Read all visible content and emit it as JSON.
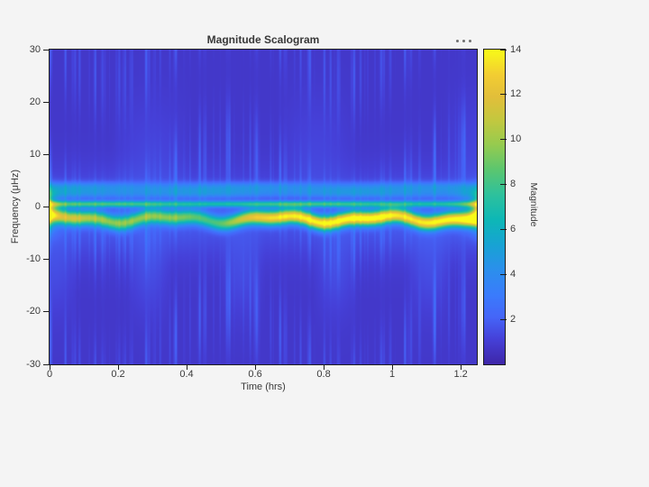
{
  "window": {
    "background": "#f4f4f4"
  },
  "title": "Magnitude Scalogram",
  "toolbar": {
    "more_options_icon": "ellipsis"
  },
  "axes": {
    "xlabel": "Time (hrs)",
    "ylabel": "Frequency (μHz)",
    "xtick_labels": [
      "0",
      "0.2",
      "0.4",
      "0.6",
      "0.8",
      "1",
      "1.2"
    ],
    "ytick_labels": [
      "30",
      "20",
      "10",
      "0",
      "-10",
      "-20",
      "-30"
    ]
  },
  "colorbar": {
    "label": "Magnitude",
    "tick_labels": [
      "2",
      "4",
      "6",
      "8",
      "10",
      "12",
      "14"
    ]
  },
  "chart_data": {
    "type": "heatmap",
    "subtype": "cwt-scalogram",
    "title": "Magnitude Scalogram",
    "xlabel": "Time (hrs)",
    "ylabel": "Frequency (μHz)",
    "xlim": [
      0,
      1.247
    ],
    "ylim": [
      -30,
      30
    ],
    "xticks": [
      0,
      0.2,
      0.4,
      0.6,
      0.8,
      1,
      1.2
    ],
    "yticks": [
      30,
      20,
      10,
      0,
      -10,
      -20,
      -30
    ],
    "grid": false,
    "colorbar": {
      "label": "Magnitude",
      "min": 0,
      "max": 14,
      "ticks": [
        2,
        4,
        6,
        8,
        10,
        12,
        14
      ],
      "position": "right"
    },
    "colormap": {
      "name": "parula",
      "stops": [
        [
          0.0,
          "#3e26a8"
        ],
        [
          0.08,
          "#4540d8"
        ],
        [
          0.15,
          "#4565f8"
        ],
        [
          0.22,
          "#3a7bfc"
        ],
        [
          0.3,
          "#2b8fec"
        ],
        [
          0.38,
          "#17a3d3"
        ],
        [
          0.46,
          "#0db7b6"
        ],
        [
          0.54,
          "#2ec19c"
        ],
        [
          0.62,
          "#5cc66e"
        ],
        [
          0.7,
          "#97cb4e"
        ],
        [
          0.78,
          "#c5c73e"
        ],
        [
          0.85,
          "#e2be3a"
        ],
        [
          0.92,
          "#f2cd32"
        ],
        [
          1.0,
          "#f8fa18"
        ]
      ]
    },
    "field": {
      "tmax": 1.247,
      "background_level": 0.78,
      "striation_amplitude": 1.0,
      "bands": [
        {
          "type": "ridge",
          "center": -2.3,
          "sigma": 0.95,
          "amp_low": 7.6,
          "amp_high": 12.3,
          "t_rise": 0.56,
          "rise_width": 0.09,
          "wobble": [
            0.55,
            3.2,
            0.8,
            0.3,
            6.8,
            2.0
          ],
          "bumps": [
            {
              "t": 0.07,
              "w": 0.05,
              "a": 1.5
            },
            {
              "t": 0.95,
              "w": 0.06,
              "a": 0.7
            }
          ],
          "dips": [
            {
              "t": 0.48,
              "w": 0.05,
              "a": 1.7
            },
            {
              "t": 1.04,
              "w": 0.05,
              "a": 1.0
            }
          ]
        },
        {
          "type": "line",
          "center": 0.55,
          "sigma": 0.42,
          "amp": 5.6,
          "amp_wobble": [
            0.6,
            1.6,
            0.3
          ]
        },
        {
          "type": "line",
          "center": 2.8,
          "sigma": 0.9,
          "amp": 2.6,
          "amp_wobble": [
            0.4,
            2.3,
            1.1
          ]
        },
        {
          "type": "line",
          "center": 4.0,
          "sigma": 0.6,
          "amp": 1.3,
          "amp_wobble": [
            0.3,
            1.9,
            0.7
          ]
        },
        {
          "type": "line",
          "center": 1.6,
          "sigma": 0.4,
          "amp": -0.6,
          "amp_wobble": [
            0.1,
            1.0,
            0.0
          ]
        },
        {
          "type": "line",
          "center": -1.5,
          "sigma": 5.5,
          "amp": 1.0,
          "amp_wobble": [
            0.15,
            1.1,
            0.0
          ]
        }
      ],
      "edge_effect": {
        "amp": 8.5,
        "tau": 0.02,
        "center": -0.8,
        "sigma": 2.4
      }
    }
  }
}
